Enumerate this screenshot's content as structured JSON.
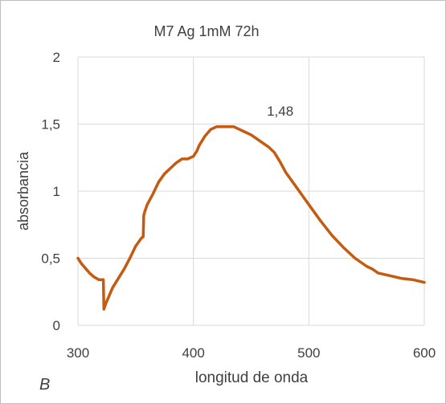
{
  "chart_data": {
    "type": "line",
    "title": "M7 Ag 1mM 72h",
    "xlabel": "longitud de onda",
    "ylabel": "absorbancia",
    "xlim": [
      300,
      600
    ],
    "ylim": [
      0,
      2
    ],
    "xticks": [
      300,
      400,
      500,
      600
    ],
    "xtick_labels": [
      "300",
      "400",
      "500",
      "600"
    ],
    "yticks": [
      0,
      0.5,
      1,
      1.5,
      2
    ],
    "ytick_labels": [
      "0",
      "0,5",
      "1",
      "1,5",
      "2"
    ],
    "grid": true,
    "legend": "none",
    "panel_label": "B",
    "annotation": {
      "text": "1,48",
      "x": 432,
      "y": 1.48
    },
    "series": [
      {
        "color": "#C55A11",
        "x": [
          300,
          303,
          306,
          310,
          314,
          318,
          320,
          321,
          322,
          322.5,
          324,
          326,
          330,
          335,
          340,
          345,
          350,
          355,
          356.5,
          357,
          358,
          360,
          365,
          370,
          375,
          380,
          385,
          390,
          395,
          400,
          403,
          405,
          410,
          415,
          420,
          425,
          430,
          435,
          440,
          445,
          450,
          455,
          460,
          465,
          470,
          475,
          480,
          490,
          500,
          510,
          520,
          530,
          540,
          550,
          555,
          560,
          570,
          580,
          590,
          600
        ],
        "y": [
          0.5,
          0.46,
          0.43,
          0.39,
          0.36,
          0.34,
          0.34,
          0.34,
          0.34,
          0.12,
          0.16,
          0.2,
          0.28,
          0.35,
          0.42,
          0.5,
          0.59,
          0.65,
          0.66,
          0.82,
          0.85,
          0.9,
          0.98,
          1.07,
          1.13,
          1.17,
          1.21,
          1.24,
          1.24,
          1.26,
          1.3,
          1.34,
          1.41,
          1.46,
          1.48,
          1.48,
          1.48,
          1.48,
          1.46,
          1.44,
          1.42,
          1.39,
          1.36,
          1.33,
          1.29,
          1.22,
          1.14,
          1.02,
          0.9,
          0.78,
          0.67,
          0.58,
          0.5,
          0.44,
          0.42,
          0.39,
          0.37,
          0.35,
          0.34,
          0.32
        ]
      }
    ]
  }
}
